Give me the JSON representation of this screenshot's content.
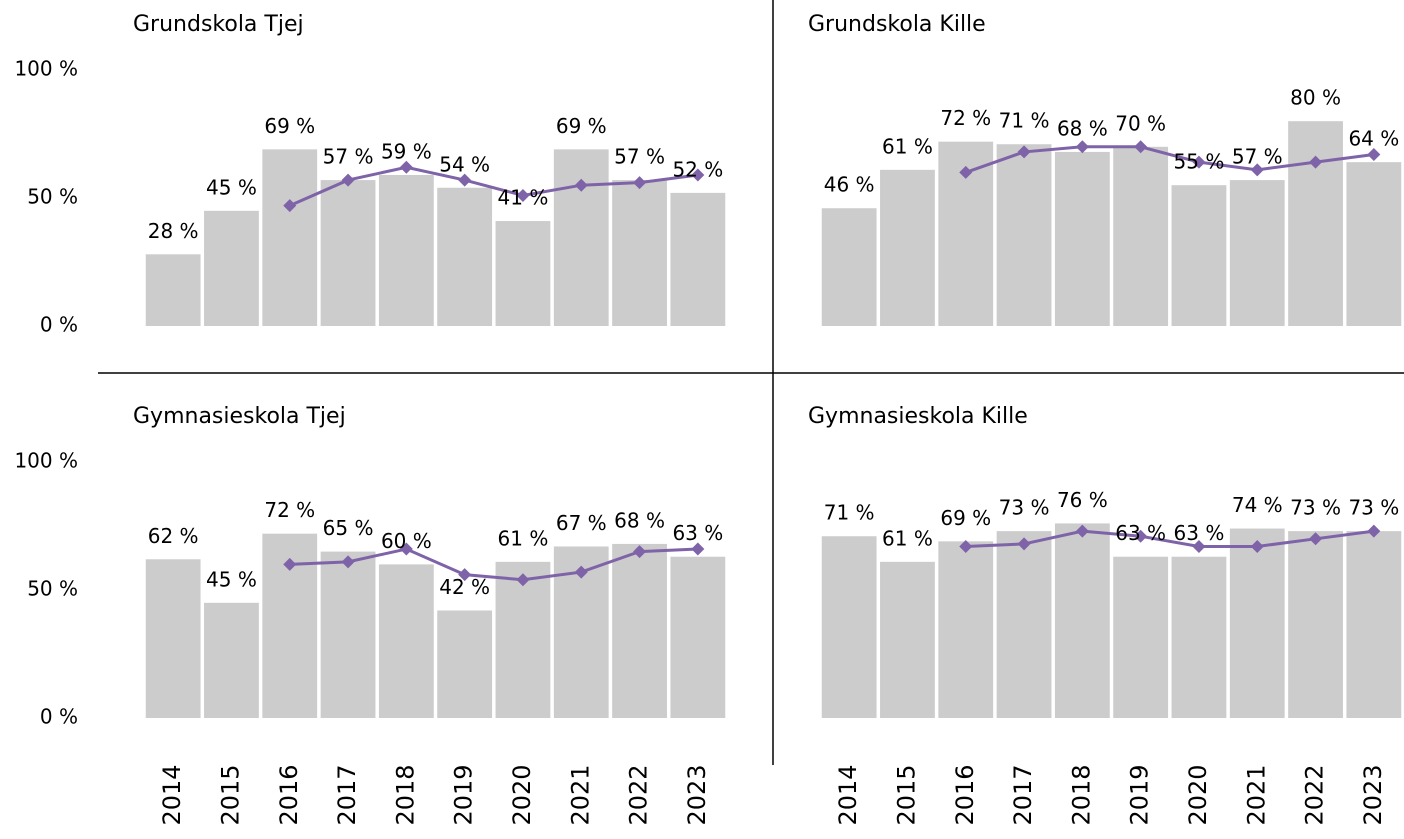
{
  "chart_data": [
    {
      "type": "bar",
      "title": "Grundskola Tjej",
      "ylim": [
        0,
        100
      ],
      "yticks": [
        {
          "value": 0,
          "label": "0 %"
        },
        {
          "value": 50,
          "label": "50 %"
        },
        {
          "value": 100,
          "label": "100 %"
        }
      ],
      "series": [
        {
          "type": "bar",
          "color": "#cccccc",
          "values": [
            28,
            45,
            69,
            57,
            59,
            54,
            41,
            69,
            57,
            52
          ],
          "value_labels": [
            "28 %",
            "45 %",
            "69 %",
            "57 %",
            "59 %",
            "54 %",
            "41 %",
            "69 %",
            "57 %",
            "52 %"
          ]
        },
        {
          "type": "line",
          "color": "#7f63a8",
          "values": [
            null,
            null,
            47,
            57,
            62,
            57,
            51,
            55,
            56,
            59
          ]
        }
      ]
    },
    {
      "type": "bar",
      "title": "Grundskola Kille",
      "ylim": [
        0,
        100
      ],
      "series": [
        {
          "type": "bar",
          "color": "#cccccc",
          "values": [
            46,
            61,
            72,
            71,
            68,
            70,
            55,
            57,
            80,
            64
          ],
          "value_labels": [
            "46 %",
            "61 %",
            "72 %",
            "71 %",
            "68 %",
            "70 %",
            "55 %",
            "57 %",
            "80 %",
            "64 %"
          ]
        },
        {
          "type": "line",
          "color": "#7f63a8",
          "values": [
            null,
            null,
            60,
            68,
            70,
            70,
            64,
            61,
            64,
            67
          ]
        }
      ]
    },
    {
      "type": "bar",
      "title": "Gymnasieskola Tjej",
      "ylim": [
        0,
        100
      ],
      "yticks": [
        {
          "value": 0,
          "label": "0 %"
        },
        {
          "value": 50,
          "label": "50 %"
        },
        {
          "value": 100,
          "label": "100 %"
        }
      ],
      "categories": [
        "2014",
        "2015",
        "2016",
        "2017",
        "2018",
        "2019",
        "2020",
        "2021",
        "2022",
        "2023"
      ],
      "series": [
        {
          "type": "bar",
          "color": "#cccccc",
          "values": [
            62,
            45,
            72,
            65,
            60,
            42,
            61,
            67,
            68,
            63
          ],
          "value_labels": [
            "62 %",
            "45 %",
            "72 %",
            "65 %",
            "60 %",
            "42 %",
            "61 %",
            "67 %",
            "68 %",
            "63 %"
          ]
        },
        {
          "type": "line",
          "color": "#7f63a8",
          "values": [
            null,
            null,
            60,
            61,
            66,
            56,
            54,
            57,
            65,
            66
          ]
        }
      ]
    },
    {
      "type": "bar",
      "title": "Gymnasieskola Kille",
      "ylim": [
        0,
        100
      ],
      "categories": [
        "2014",
        "2015",
        "2016",
        "2017",
        "2018",
        "2019",
        "2020",
        "2021",
        "2022",
        "2023"
      ],
      "series": [
        {
          "type": "bar",
          "color": "#cccccc",
          "values": [
            71,
            61,
            69,
            73,
            76,
            63,
            63,
            74,
            73,
            73
          ],
          "value_labels": [
            "71 %",
            "61 %",
            "69 %",
            "73 %",
            "76 %",
            "63 %",
            "63 %",
            "74 %",
            "73 %",
            "73 %"
          ]
        },
        {
          "type": "line",
          "color": "#7f63a8",
          "values": [
            null,
            null,
            67,
            68,
            73,
            71,
            67,
            67,
            70,
            73
          ]
        }
      ]
    }
  ]
}
